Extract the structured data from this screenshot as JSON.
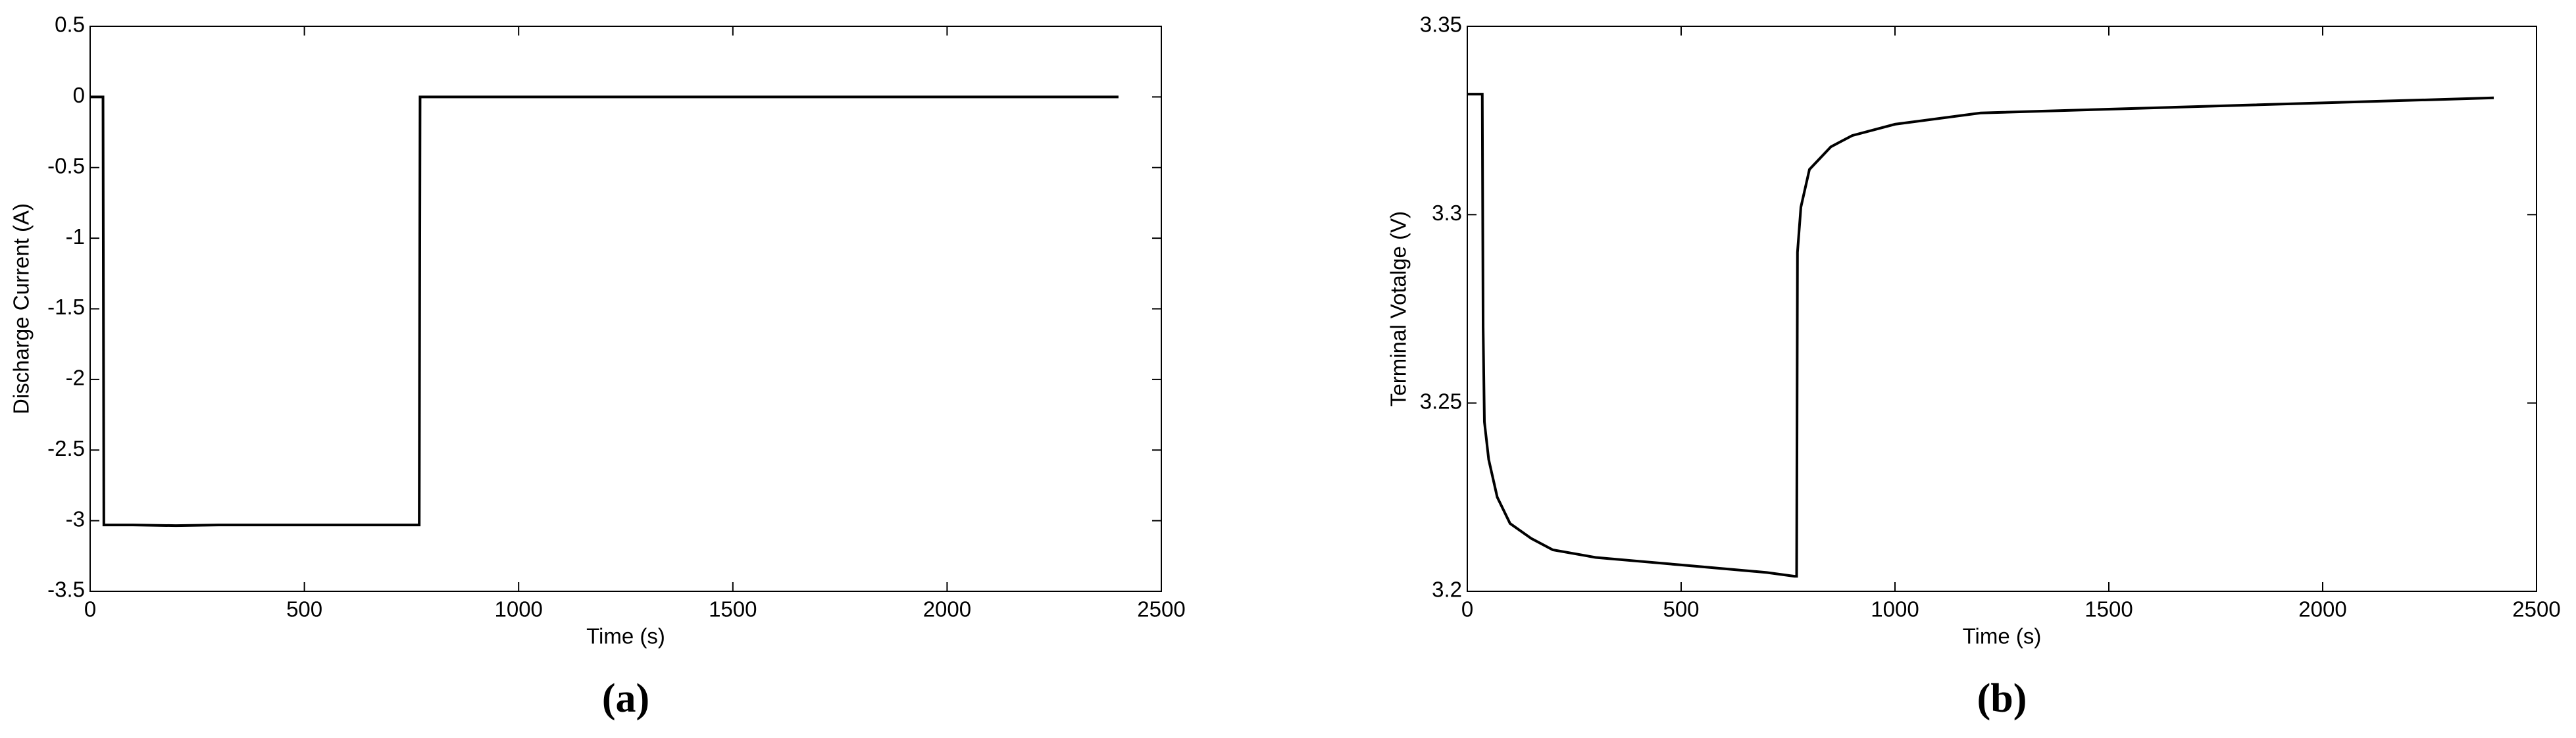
{
  "chart_data": [
    {
      "type": "line",
      "caption": "(a)",
      "xlabel": "Time (s)",
      "ylabel": "Discharge Current (A)",
      "color": "#000000",
      "x": [
        0,
        30,
        32,
        36,
        100,
        200,
        300,
        400,
        500,
        600,
        700,
        768,
        770,
        1000,
        1500,
        2000,
        2400
      ],
      "values": [
        0,
        0,
        -3.03,
        -3.03,
        -3.03,
        -3.035,
        -3.03,
        -3.03,
        -3.03,
        -3.03,
        -3.03,
        -3.03,
        0,
        0,
        0,
        0,
        0
      ],
      "xlim": [
        0,
        2500
      ],
      "xticks": [
        0,
        500,
        1000,
        1500,
        2000,
        2500
      ],
      "ylim": [
        -3.5,
        0.5
      ],
      "yticks": [
        -3.5,
        -3,
        -2.5,
        -2,
        -1.5,
        -1,
        -0.5,
        0,
        0.5
      ]
    },
    {
      "type": "line",
      "caption": "(b)",
      "xlabel": "Time (s)",
      "ylabel": "Terminal Votalge (V)",
      "color": "#000000",
      "x": [
        0,
        35,
        37,
        40,
        50,
        70,
        100,
        150,
        200,
        300,
        400,
        500,
        600,
        700,
        765,
        770,
        772,
        780,
        800,
        850,
        900,
        1000,
        1200,
        1500,
        1800,
        2100,
        2400
      ],
      "values": [
        3.332,
        3.332,
        3.27,
        3.245,
        3.235,
        3.225,
        3.218,
        3.214,
        3.211,
        3.209,
        3.208,
        3.207,
        3.206,
        3.205,
        3.204,
        3.204,
        3.29,
        3.302,
        3.312,
        3.318,
        3.321,
        3.324,
        3.327,
        3.328,
        3.329,
        3.33,
        3.331
      ],
      "xlim": [
        0,
        2500
      ],
      "xticks": [
        0,
        500,
        1000,
        1500,
        2000,
        2500
      ],
      "ylim": [
        3.2,
        3.35
      ],
      "yticks": [
        3.2,
        3.25,
        3.3,
        3.35
      ]
    }
  ]
}
